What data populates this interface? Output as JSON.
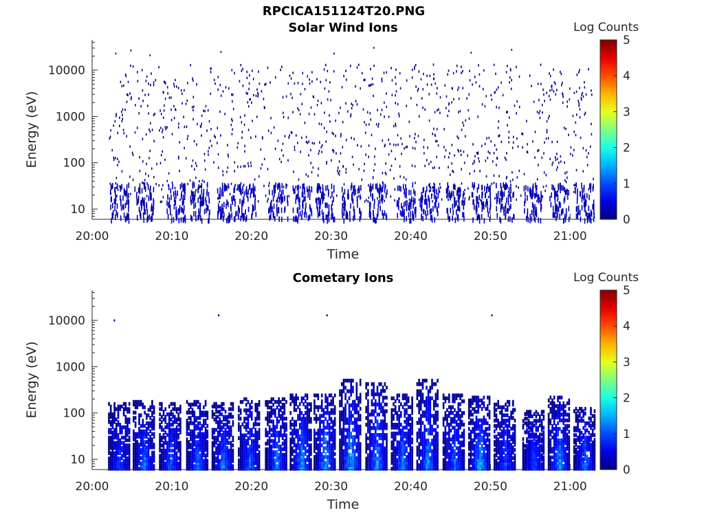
{
  "figure_title": "RPCICA151124T20.PNG",
  "panels": [
    {
      "title": "Solar Wind Ions",
      "xlabel": "Time",
      "ylabel": "Energy (eV)",
      "colorbar_label": "Log Counts"
    },
    {
      "title": "Cometary Ions",
      "xlabel": "Time",
      "ylabel": "Energy (eV)",
      "colorbar_label": "Log Counts"
    }
  ],
  "chart_data": [
    {
      "type": "heatmap",
      "title": "Solar Wind Ions",
      "xlabel": "Time",
      "ylabel": "Energy (eV)",
      "x_tick_labels": [
        "20:00",
        "20:10",
        "20:20",
        "20:30",
        "20:40",
        "20:50",
        "21:00"
      ],
      "x_ticks_minutes": [
        0,
        10,
        20,
        30,
        40,
        50,
        60
      ],
      "xlim_minutes": [
        0,
        63
      ],
      "y_tick_labels": [
        "10",
        "100",
        "1000",
        "10000"
      ],
      "y_ticks": [
        10,
        100,
        1000,
        10000
      ],
      "ylim": [
        6,
        45000
      ],
      "yscale": "log",
      "colorbar": {
        "label": "Log Counts",
        "range": [
          0,
          5
        ],
        "ticks": [
          0,
          1,
          2,
          3,
          4,
          5
        ],
        "colormap": "jet"
      },
      "description_of_values": "Sparse single-count scatter (log counts ~0) from ~5 eV to ~30000 eV across 20:02-21:03; denser low-energy bursts below ~40 eV at intervals",
      "burst_centers_minutes": [
        3.4,
        6.5,
        10.5,
        13.5,
        16.8,
        19.3,
        23.3,
        26.3,
        29.2,
        32.5,
        35.9,
        39.4,
        42.3,
        45.6,
        48.8,
        51.8,
        55.3,
        58.6,
        61.8
      ],
      "burst_peak_log_counts": [
        0.3,
        0.3,
        0.5,
        0.3,
        0.4,
        0.4,
        0.4,
        0.5,
        0.4,
        0.4,
        0.4,
        0.5,
        0.5,
        0.3,
        0.3,
        0.3,
        0.4,
        0.4,
        0.4
      ],
      "scatter_level_log_counts": 0.0
    },
    {
      "type": "heatmap",
      "title": "Cometary Ions",
      "xlabel": "Time",
      "ylabel": "Energy (eV)",
      "x_tick_labels": [
        "20:00",
        "20:10",
        "20:20",
        "20:30",
        "20:40",
        "20:50",
        "21:00"
      ],
      "x_ticks_minutes": [
        0,
        10,
        20,
        30,
        40,
        50,
        60
      ],
      "xlim_minutes": [
        0,
        63
      ],
      "y_tick_labels": [
        "10",
        "100",
        "1000",
        "10000"
      ],
      "y_ticks": [
        10,
        100,
        1000,
        10000
      ],
      "ylim": [
        6,
        45000
      ],
      "yscale": "log",
      "colorbar": {
        "label": "Log Counts",
        "range": [
          0,
          5
        ],
        "ticks": [
          0,
          1,
          2,
          3,
          4,
          5
        ],
        "colormap": "jet"
      },
      "burst_centers_minutes": [
        3.4,
        6.5,
        9.8,
        13.2,
        16.4,
        19.7,
        23.1,
        26.2,
        29.2,
        32.4,
        35.7,
        38.9,
        42.1,
        45.4,
        48.6,
        51.8,
        55.4,
        58.6,
        61.8
      ],
      "burst_peak_log_counts": [
        1.2,
        1.5,
        1.4,
        1.4,
        1.6,
        1.5,
        1.6,
        1.8,
        1.9,
        1.9,
        1.8,
        1.6,
        1.7,
        1.4,
        1.9,
        1.3,
        1.3,
        1.8,
        1.6
      ],
      "burst_top_energy_eV": [
        180,
        200,
        180,
        200,
        180,
        230,
        230,
        280,
        280,
        600,
        500,
        280,
        600,
        280,
        250,
        200,
        120,
        250,
        140
      ],
      "isolated_points": [
        {
          "minute": 2.7,
          "energy_eV": 10500
        },
        {
          "minute": 15.8,
          "energy_eV": 13500
        },
        {
          "minute": 29.4,
          "energy_eV": 13500
        },
        {
          "minute": 50.1,
          "energy_eV": 13500
        }
      ]
    }
  ]
}
